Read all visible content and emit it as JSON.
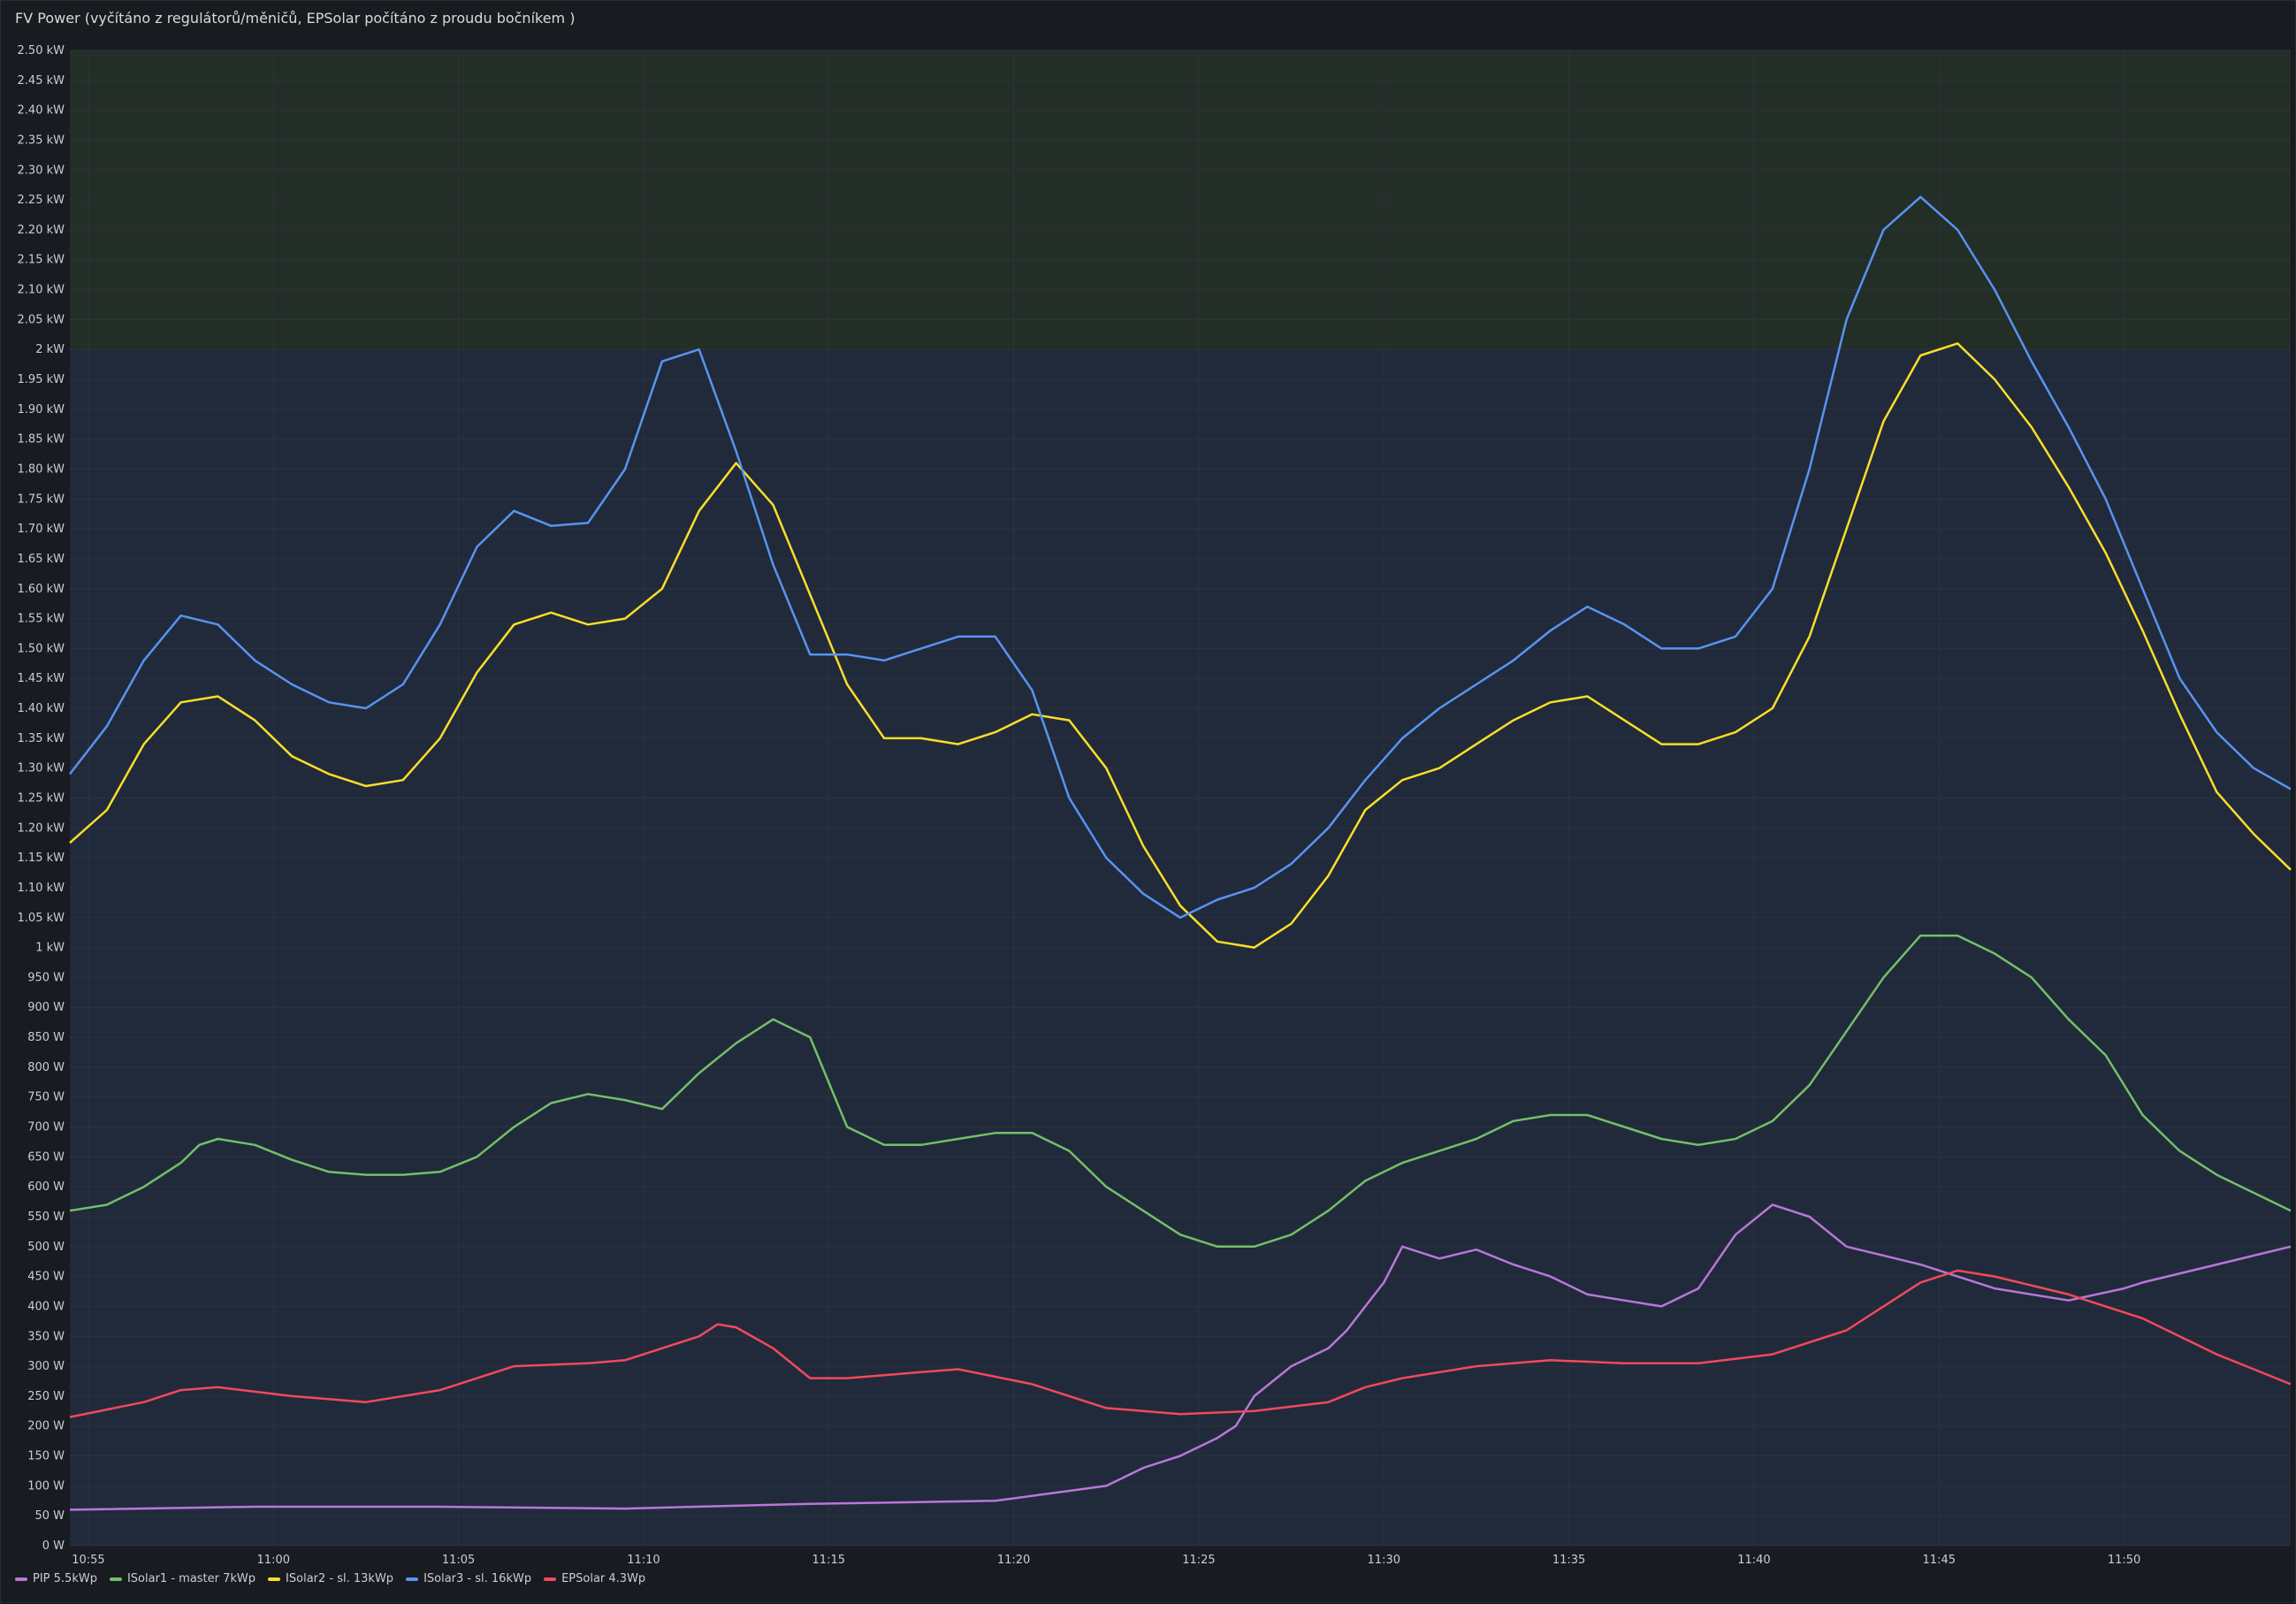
{
  "panel": {
    "title": "FV Power (vyčítáno z regulátorů/měničů, EPSolar počítáno z proudu bočníkem )"
  },
  "colors": {
    "background": "#181b1f",
    "plot_zone_low": "#212a3a",
    "plot_zone_high": "#232e27",
    "grid": "#2c3240",
    "text": "#ccccdc"
  },
  "chart_data": {
    "type": "line",
    "title": "FV Power (vyčítáno z regulátorů/měničů, EPSolar počítáno z proudu bočníkem )",
    "xlabel": "",
    "ylabel": "",
    "unit": "W",
    "x_range": [
      "10:54:30",
      "11:54:30"
    ],
    "ylim": [
      0,
      2500
    ],
    "grid": true,
    "legend_position": "bottom-left",
    "thresholds": [
      {
        "from": 0,
        "to": 2000,
        "color": "#212a3a"
      },
      {
        "from": 2000,
        "to": 2500,
        "color": "#232e27"
      }
    ],
    "x_ticks": [
      "10:55",
      "11:00",
      "11:05",
      "11:10",
      "11:15",
      "11:20",
      "11:25",
      "11:30",
      "11:35",
      "11:40",
      "11:45",
      "11:50"
    ],
    "x_tick_minutes": [
      0.5,
      5.5,
      10.5,
      15.5,
      20.5,
      25.5,
      30.5,
      35.5,
      40.5,
      45.5,
      50.5,
      55.5
    ],
    "y_ticks": [
      "0 W",
      "50 W",
      "100 W",
      "150 W",
      "200 W",
      "250 W",
      "300 W",
      "350 W",
      "400 W",
      "450 W",
      "500 W",
      "550 W",
      "600 W",
      "650 W",
      "700 W",
      "750 W",
      "800 W",
      "850 W",
      "900 W",
      "950 W",
      "1 kW",
      "1.05 kW",
      "1.10 kW",
      "1.15 kW",
      "1.20 kW",
      "1.25 kW",
      "1.30 kW",
      "1.35 kW",
      "1.40 kW",
      "1.45 kW",
      "1.50 kW",
      "1.55 kW",
      "1.60 kW",
      "1.65 kW",
      "1.70 kW",
      "1.75 kW",
      "1.80 kW",
      "1.85 kW",
      "1.90 kW",
      "1.95 kW",
      "2 kW",
      "2.05 kW",
      "2.10 kW",
      "2.15 kW",
      "2.20 kW",
      "2.25 kW",
      "2.30 kW",
      "2.35 kW",
      "2.40 kW",
      "2.45 kW",
      "2.50 kW"
    ],
    "y_tick_values": [
      0,
      50,
      100,
      150,
      200,
      250,
      300,
      350,
      400,
      450,
      500,
      550,
      600,
      650,
      700,
      750,
      800,
      850,
      900,
      950,
      1000,
      1050,
      1100,
      1150,
      1200,
      1250,
      1300,
      1350,
      1400,
      1450,
      1500,
      1550,
      1600,
      1650,
      1700,
      1750,
      1800,
      1850,
      1900,
      1950,
      2000,
      2050,
      2100,
      2150,
      2200,
      2250,
      2300,
      2350,
      2400,
      2450,
      2500
    ],
    "x_unit_note": "minutes after 10:54:30",
    "series": [
      {
        "name": "PIP 5.5kWp",
        "color": "#b877d9",
        "x": [
          0,
          5,
          10,
          15,
          20,
          25,
          28,
          29,
          30,
          31,
          31.5,
          32,
          33,
          34,
          34.5,
          35,
          35.5,
          36,
          37,
          38,
          39,
          40,
          41,
          42,
          43,
          44,
          45,
          46,
          47,
          48,
          50,
          52,
          54,
          55.5,
          56,
          58,
          60
        ],
        "y": [
          60,
          65,
          65,
          62,
          70,
          75,
          100,
          130,
          150,
          180,
          200,
          250,
          300,
          330,
          360,
          400,
          440,
          500,
          480,
          495,
          470,
          450,
          420,
          410,
          400,
          430,
          520,
          570,
          550,
          500,
          470,
          430,
          410,
          430,
          440,
          470,
          500
        ]
      },
      {
        "name": "ISolar1 - master 7kWp",
        "color": "#73bf69",
        "x": [
          0,
          1,
          2,
          3,
          3.5,
          4,
          5,
          6,
          7,
          8,
          9,
          10,
          11,
          12,
          13,
          14,
          15,
          16,
          17,
          18,
          19,
          20,
          21,
          22,
          23,
          24,
          25,
          26,
          27,
          28,
          29,
          30,
          31,
          32,
          33,
          34,
          35,
          36,
          37,
          38,
          39,
          40,
          41,
          42,
          43,
          44,
          45,
          46,
          47,
          48,
          49,
          50,
          51,
          52,
          53,
          54,
          55,
          56,
          57,
          58,
          59,
          60
        ],
        "y": [
          560,
          570,
          600,
          640,
          670,
          680,
          670,
          645,
          625,
          620,
          620,
          625,
          650,
          700,
          740,
          755,
          745,
          730,
          790,
          840,
          880,
          850,
          700,
          670,
          670,
          680,
          690,
          690,
          660,
          600,
          560,
          520,
          500,
          500,
          520,
          560,
          610,
          640,
          660,
          680,
          710,
          720,
          720,
          700,
          680,
          670,
          680,
          710,
          770,
          860,
          950,
          1020,
          1020,
          990,
          950,
          880,
          820,
          720,
          660,
          620,
          590,
          560
        ]
      },
      {
        "name": "ISolar2 - sl. 13kWp",
        "color": "#fade2a",
        "x": [
          0,
          1,
          2,
          3,
          4,
          5,
          6,
          7,
          8,
          9,
          10,
          11,
          12,
          13,
          14,
          15,
          16,
          17,
          18,
          19,
          20,
          21,
          22,
          23,
          24,
          25,
          26,
          27,
          28,
          29,
          30,
          31,
          32,
          33,
          34,
          35,
          36,
          37,
          38,
          39,
          40,
          41,
          42,
          43,
          44,
          45,
          46,
          47,
          48,
          49,
          50,
          51,
          52,
          53,
          54,
          55,
          56,
          57,
          58,
          59,
          60
        ],
        "y": [
          1175,
          1230,
          1340,
          1410,
          1420,
          1380,
          1320,
          1290,
          1270,
          1280,
          1350,
          1460,
          1540,
          1560,
          1540,
          1550,
          1600,
          1730,
          1810,
          1740,
          1590,
          1440,
          1350,
          1350,
          1340,
          1360,
          1390,
          1380,
          1300,
          1170,
          1070,
          1010,
          1000,
          1040,
          1120,
          1230,
          1280,
          1300,
          1340,
          1380,
          1410,
          1420,
          1380,
          1340,
          1340,
          1360,
          1400,
          1520,
          1700,
          1880,
          1990,
          2010,
          1950,
          1870,
          1770,
          1660,
          1530,
          1390,
          1260,
          1190,
          1130
        ]
      },
      {
        "name": "ISolar3 - sl. 16kWp",
        "color": "#5794f2",
        "x": [
          0,
          1,
          2,
          3,
          4,
          5,
          6,
          7,
          8,
          9,
          10,
          11,
          12,
          13,
          14,
          15,
          16,
          17,
          18,
          19,
          20,
          21,
          22,
          23,
          24,
          25,
          26,
          27,
          28,
          29,
          30,
          31,
          32,
          33,
          34,
          35,
          36,
          37,
          38,
          39,
          40,
          41,
          42,
          43,
          44,
          45,
          46,
          47,
          48,
          49,
          50,
          51,
          52,
          53,
          54,
          55,
          56,
          57,
          58,
          59,
          60
        ],
        "y": [
          1290,
          1370,
          1480,
          1555,
          1540,
          1480,
          1440,
          1410,
          1400,
          1440,
          1540,
          1670,
          1730,
          1705,
          1710,
          1800,
          1980,
          2000,
          1830,
          1640,
          1490,
          1490,
          1480,
          1500,
          1520,
          1520,
          1430,
          1250,
          1150,
          1090,
          1050,
          1080,
          1100,
          1140,
          1200,
          1280,
          1350,
          1400,
          1440,
          1480,
          1530,
          1570,
          1540,
          1500,
          1500,
          1520,
          1600,
          1800,
          2050,
          2200,
          2255,
          2200,
          2100,
          1980,
          1870,
          1750,
          1600,
          1450,
          1360,
          1300,
          1265
        ]
      },
      {
        "name": "EPSolar 4.3Wp",
        "color": "#f2495c",
        "x": [
          0,
          2,
          3,
          4,
          6,
          8,
          10,
          12,
          14,
          15,
          16,
          17,
          17.5,
          18,
          19,
          20,
          21,
          22,
          23,
          24,
          26,
          28,
          30,
          32,
          34,
          35,
          36,
          38,
          40,
          42,
          44,
          46,
          48,
          50,
          51,
          52,
          54,
          56,
          58,
          60
        ],
        "y": [
          215,
          240,
          260,
          265,
          250,
          240,
          260,
          300,
          305,
          310,
          330,
          350,
          370,
          365,
          330,
          280,
          280,
          285,
          290,
          295,
          270,
          230,
          220,
          225,
          240,
          265,
          280,
          300,
          310,
          305,
          305,
          320,
          360,
          440,
          460,
          450,
          420,
          380,
          320,
          270
        ]
      }
    ]
  }
}
